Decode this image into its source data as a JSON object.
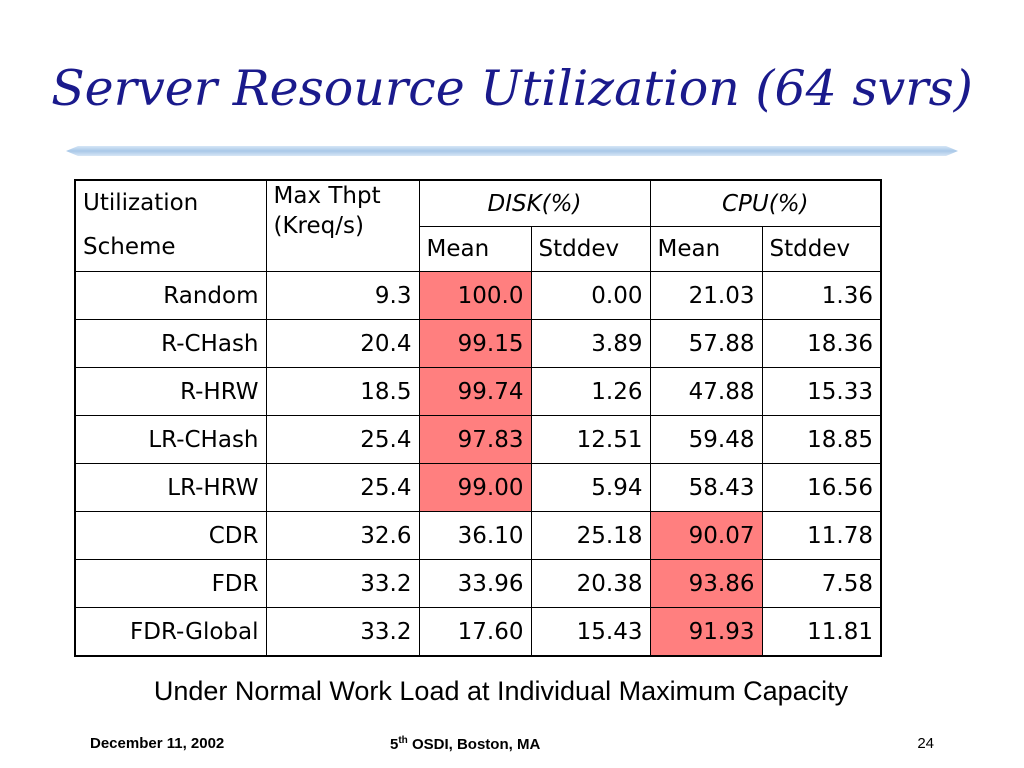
{
  "slide": {
    "title": "Server Resource Utilization (64 svrs)",
    "caption": "Under Normal Work Load at Individual Maximum Capacity",
    "colors": {
      "title": "#1a1a8c",
      "rule": "#a9c8e8",
      "highlight": "#ff7f7f"
    }
  },
  "table": {
    "header": {
      "scheme_line1": "Utilization",
      "scheme_line2": "Scheme",
      "thpt_line1": "Max Thpt",
      "thpt_line2": "(Kreq/s)",
      "disk": "DISK(%)",
      "cpu": "CPU(%)",
      "mean": "Mean",
      "stddev": "Stddev"
    },
    "rows": [
      {
        "scheme": "Random",
        "thpt": "9.3",
        "disk_mean": "100.0",
        "disk_std": "0.00",
        "cpu_mean": "21.03",
        "cpu_std": "1.36",
        "highlight": "disk_mean"
      },
      {
        "scheme": "R-CHash",
        "thpt": "20.4",
        "disk_mean": "99.15",
        "disk_std": "3.89",
        "cpu_mean": "57.88",
        "cpu_std": "18.36",
        "highlight": "disk_mean"
      },
      {
        "scheme": "R-HRW",
        "thpt": "18.5",
        "disk_mean": "99.74",
        "disk_std": "1.26",
        "cpu_mean": "47.88",
        "cpu_std": "15.33",
        "highlight": "disk_mean"
      },
      {
        "scheme": "LR-CHash",
        "thpt": "25.4",
        "disk_mean": "97.83",
        "disk_std": "12.51",
        "cpu_mean": "59.48",
        "cpu_std": "18.85",
        "highlight": "disk_mean"
      },
      {
        "scheme": "LR-HRW",
        "thpt": "25.4",
        "disk_mean": "99.00",
        "disk_std": "5.94",
        "cpu_mean": "58.43",
        "cpu_std": "16.56",
        "highlight": "disk_mean"
      },
      {
        "scheme": "CDR",
        "thpt": "32.6",
        "disk_mean": "36.10",
        "disk_std": "25.18",
        "cpu_mean": "90.07",
        "cpu_std": "11.78",
        "highlight": "cpu_mean"
      },
      {
        "scheme": "FDR",
        "thpt": "33.2",
        "disk_mean": "33.96",
        "disk_std": "20.38",
        "cpu_mean": "93.86",
        "cpu_std": "7.58",
        "highlight": "cpu_mean"
      },
      {
        "scheme": "FDR-Global",
        "thpt": "33.2",
        "disk_mean": "17.60",
        "disk_std": "15.43",
        "cpu_mean": "91.93",
        "cpu_std": "11.81",
        "highlight": "cpu_mean"
      }
    ]
  },
  "footer": {
    "date": "December 11, 2002",
    "conf_num": "5",
    "conf_sup": "th",
    "conf_rest": " OSDI, Boston, MA",
    "page": "24"
  }
}
